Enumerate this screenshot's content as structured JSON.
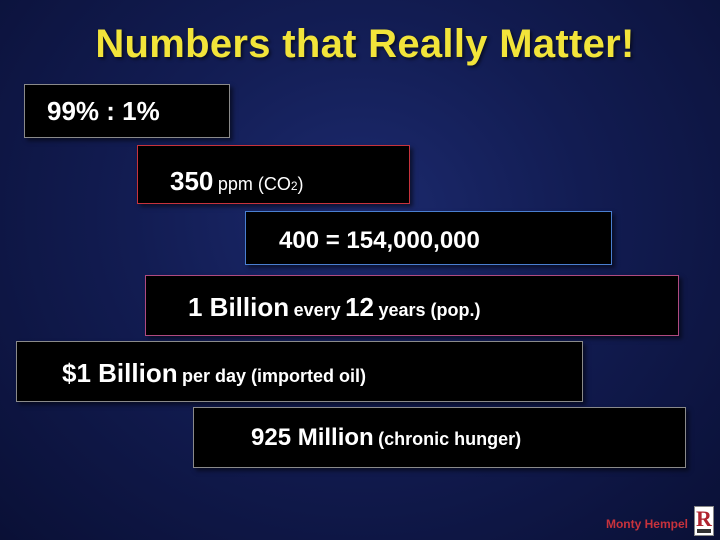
{
  "title": "Numbers that Really Matter!",
  "items": [
    {
      "main": "99% : 1%"
    },
    {
      "number": "350",
      "unit": "ppm (CO",
      "subscript": "2",
      "close": ")"
    },
    {
      "main": "400 = 154,000,000"
    },
    {
      "part1": "1 Billion",
      "part2": "every",
      "part3": "12",
      "part4": "years (pop.)"
    },
    {
      "main": "$1 Billion",
      "rest": "per day (imported oil)"
    },
    {
      "main": "925 Million",
      "rest": "(chronic hunger)"
    }
  ],
  "footer": {
    "author": "Monty Hempel",
    "logo_icon": "redlands-r-logo-icon"
  },
  "colors": {
    "title": "#f2e43a",
    "box_background": "#000000",
    "author": "#c8323c"
  }
}
